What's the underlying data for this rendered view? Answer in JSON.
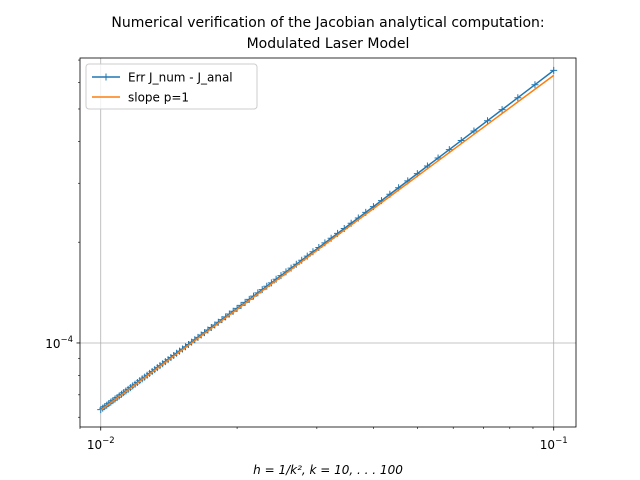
{
  "chart_data": {
    "type": "line",
    "title": [
      "Numerical verification of the Jacobian analytical computation:",
      "Modulated Laser Model"
    ],
    "xlabel": "h = 1/k², k = 10, . . . 100",
    "log_x": true,
    "log_y": true,
    "grid": true,
    "legend": "upper left",
    "xlim": [
      0.009,
      0.112
    ],
    "ylim": [
      5.61e-05,
      0.00071
    ],
    "xticks": [
      {
        "value": 0.01,
        "label": "10",
        "exponent": "−2"
      },
      {
        "value": 0.1,
        "label": "10",
        "exponent": "−1"
      }
    ],
    "yticks": [
      {
        "value": 0.0001,
        "label": "10",
        "exponent": "−4"
      }
    ],
    "x": [
      0.1,
      0.090909,
      0.083333,
      0.076923,
      0.071429,
      0.066667,
      0.0625,
      0.058824,
      0.055556,
      0.052632,
      0.05,
      0.047619,
      0.045455,
      0.043478,
      0.041667,
      0.04,
      0.038462,
      0.037037,
      0.035714,
      0.034483,
      0.033333,
      0.032258,
      0.03125,
      0.030303,
      0.029412,
      0.028571,
      0.027778,
      0.027027,
      0.026316,
      0.025641,
      0.025,
      0.02439,
      0.02381,
      0.023256,
      0.022727,
      0.022222,
      0.021739,
      0.021277,
      0.020833,
      0.020408,
      0.02,
      0.019608,
      0.019231,
      0.018868,
      0.018519,
      0.018182,
      0.017857,
      0.017544,
      0.017241,
      0.016949,
      0.016667,
      0.016393,
      0.016129,
      0.015873,
      0.015625,
      0.015385,
      0.015152,
      0.014925,
      0.014706,
      0.014493,
      0.014286,
      0.014085,
      0.013889,
      0.013699,
      0.013514,
      0.013333,
      0.013158,
      0.012987,
      0.012821,
      0.012658,
      0.0125,
      0.012346,
      0.012195,
      0.012048,
      0.011905,
      0.011765,
      0.011628,
      0.011494,
      0.011364,
      0.011236,
      0.011111,
      0.010989,
      0.01087,
      0.010753,
      0.010638,
      0.010526,
      0.010417,
      0.010309,
      0.010204,
      0.010101,
      0.01
    ],
    "series": [
      {
        "name": "Err J_num - J_anal",
        "color": "#1f77b4",
        "marker": "+",
        "values": [
          0.0006521,
          0.0005909,
          0.0005403,
          0.0004977,
          0.0004613,
          0.0004298,
          0.0004024,
          0.0003782,
          0.0003568,
          0.0003377,
          0.0003205,
          0.000305,
          0.0002909,
          0.0002781,
          0.0002663,
          0.0002555,
          0.0002456,
          0.0002363,
          0.0002278,
          0.0002198,
          0.0002125,
          0.0002055,
          0.000199,
          0.0001929,
          0.0001872,
          0.0001818,
          0.0001767,
          0.0001719,
          0.0001673,
          0.000163,
          0.0001589,
          0.000155,
          0.0001512,
          0.0001477,
          0.0001443,
          0.0001411,
          0.000138,
          0.000135,
          0.0001322,
          0.0001295,
          0.0001269,
          0.0001244,
          0.000122,
          0.0001197,
          0.0001174,
          0.0001153,
          0.0001132,
          0.0001112,
          0.0001093,
          0.0001074,
          0.0001056,
          0.0001039,
          0.0001022,
          0.0001006,
          9.898e-05,
          9.744e-05,
          9.596e-05,
          9.452e-05,
          9.313e-05,
          9.176e-05,
          9.045e-05,
          8.917e-05,
          8.793e-05,
          8.671e-05,
          8.554e-05,
          8.439e-05,
          8.327e-05,
          8.219e-05,
          8.113e-05,
          8.01e-05,
          7.909e-05,
          7.812e-05,
          7.716e-05,
          7.622e-05,
          7.531e-05,
          7.442e-05,
          7.356e-05,
          7.27e-05,
          7.187e-05,
          7.107e-05,
          7.027e-05,
          6.95e-05,
          6.874e-05,
          6.8e-05,
          6.727e-05,
          6.656e-05,
          6.587e-05,
          6.518e-05,
          6.452e-05,
          6.386e-05,
          6.322e-05
        ]
      },
      {
        "name": "slope p=1",
        "color": "#ff7f0e",
        "values": [
          0.00063,
          0.0005727,
          0.000525,
          0.0004846,
          0.00045,
          0.00042,
          0.0003938,
          0.0003706,
          0.00035,
          0.0003316,
          0.000315,
          0.0003,
          0.0002864,
          0.0002739,
          0.0002625,
          0.000252,
          0.0002423,
          0.0002333,
          0.000225,
          0.0002172,
          0.00021,
          0.0002032,
          0.0001969,
          0.0001909,
          0.0001853,
          0.00018,
          0.000175,
          0.0001703,
          0.0001658,
          0.0001615,
          0.0001575,
          0.0001537,
          0.00015,
          0.0001465,
          0.0001432,
          0.00014,
          0.000137,
          0.000134,
          0.0001313,
          0.0001286,
          0.000126,
          0.0001235,
          0.0001212,
          0.0001189,
          0.0001167,
          0.0001145,
          0.0001125,
          0.0001105,
          0.0001086,
          0.0001068,
          0.000105,
          0.0001033,
          0.0001016,
          0.0001,
          9.844e-05,
          9.692e-05,
          9.545e-05,
          9.403e-05,
          9.265e-05,
          9.13e-05,
          9e-05,
          8.873e-05,
          8.75e-05,
          8.63e-05,
          8.514e-05,
          8.4e-05,
          8.289e-05,
          8.182e-05,
          8.077e-05,
          7.975e-05,
          7.875e-05,
          7.778e-05,
          7.683e-05,
          7.59e-05,
          7.5e-05,
          7.412e-05,
          7.326e-05,
          7.241e-05,
          7.159e-05,
          7.079e-05,
          7e-05,
          6.923e-05,
          6.848e-05,
          6.774e-05,
          6.702e-05,
          6.632e-05,
          6.563e-05,
          6.495e-05,
          6.429e-05,
          6.364e-05,
          6.3e-05
        ]
      }
    ]
  }
}
